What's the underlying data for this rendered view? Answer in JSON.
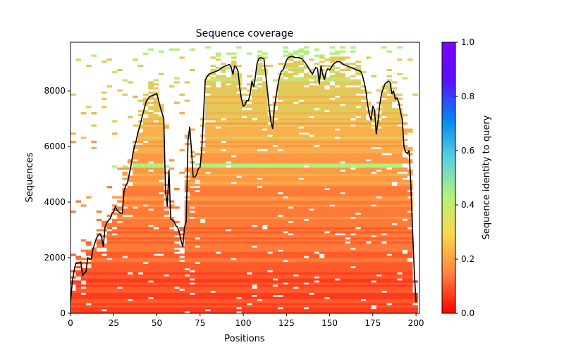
{
  "chart_data": {
    "type": "heatmap",
    "title": "Sequence coverage",
    "xlabel": "Positions",
    "ylabel": "Sequences",
    "xlim": [
      0,
      202
    ],
    "ylim": [
      0,
      9750
    ],
    "xticks": [
      0,
      25,
      50,
      75,
      100,
      125,
      150,
      175,
      200
    ],
    "yticks": [
      0,
      2000,
      4000,
      6000,
      8000
    ],
    "colorbar": {
      "label": "Sequence identity to query",
      "range": [
        0.0,
        1.0
      ],
      "ticks": [
        "0.0",
        "0.2",
        "0.4",
        "0.6",
        "0.8",
        "1.0"
      ],
      "colormap": "rainbow_r",
      "colors": [
        "#ff0000",
        "#ff7f3f",
        "#ffd44a",
        "#b4f37b",
        "#5cd0df",
        "#0088f0",
        "#5a10ff",
        "#7f00ff"
      ]
    },
    "coverage_line": {
      "color": "#000000",
      "x": [
        0,
        1,
        2,
        3,
        4,
        6,
        7,
        8,
        9,
        10,
        11,
        12,
        13,
        14,
        15,
        16,
        17,
        18,
        19,
        20,
        21,
        22,
        23,
        24,
        25,
        26,
        27,
        28,
        29,
        30,
        31,
        32,
        33,
        34,
        35,
        36,
        37,
        38,
        39,
        40,
        42,
        44,
        46,
        48,
        50,
        52,
        54,
        55,
        56,
        57,
        58,
        59,
        60,
        61,
        62,
        63,
        64,
        65,
        66,
        67,
        68,
        69,
        70,
        71,
        72,
        73,
        74,
        75,
        76,
        78,
        80,
        82,
        84,
        86,
        88,
        90,
        92,
        93,
        94,
        95,
        96,
        97,
        98,
        99,
        100,
        101,
        102,
        103,
        104,
        105,
        106,
        107,
        108,
        109,
        110,
        112,
        114,
        115,
        116,
        117,
        118,
        119,
        120,
        121,
        122,
        123,
        124,
        125,
        126,
        128,
        130,
        132,
        134,
        136,
        138,
        140,
        142,
        143,
        144,
        145,
        146,
        147,
        148,
        149,
        150,
        152,
        154,
        156,
        158,
        160,
        162,
        164,
        166,
        168,
        169,
        170,
        171,
        172,
        173,
        174,
        175,
        176,
        177,
        178,
        179,
        180,
        182,
        184,
        185,
        186,
        187,
        188,
        189,
        190,
        191,
        192,
        193,
        194,
        195,
        196,
        197,
        198,
        199,
        200,
        201
      ],
      "y": [
        400,
        1100,
        1500,
        1800,
        1800,
        1850,
        1350,
        1450,
        1500,
        2000,
        1950,
        1950,
        2300,
        2500,
        2700,
        2800,
        2850,
        2750,
        2400,
        3100,
        3250,
        3350,
        3400,
        3600,
        3650,
        3850,
        3700,
        3650,
        3600,
        3600,
        4400,
        4600,
        4700,
        5000,
        5300,
        5700,
        6000,
        6200,
        6500,
        6700,
        7200,
        7650,
        7800,
        7850,
        7900,
        7400,
        7000,
        4400,
        3850,
        5150,
        3400,
        3350,
        3300,
        3150,
        3100,
        2900,
        2600,
        2400,
        3100,
        3300,
        6200,
        6700,
        5900,
        4900,
        4900,
        5000,
        5200,
        5250,
        5900,
        8400,
        8600,
        8650,
        8700,
        8750,
        8850,
        8900,
        8950,
        8850,
        8600,
        8900,
        8850,
        8700,
        8100,
        7700,
        7450,
        7500,
        7650,
        7650,
        7900,
        8350,
        8150,
        8500,
        9000,
        9150,
        9200,
        9150,
        8000,
        7400,
        6900,
        6650,
        7400,
        7800,
        8200,
        8500,
        8700,
        8750,
        8900,
        9100,
        9200,
        9250,
        9200,
        9200,
        9150,
        9000,
        8800,
        8600,
        8850,
        8800,
        8250,
        8900,
        8600,
        8400,
        8700,
        8800,
        8750,
        8950,
        9050,
        9050,
        8950,
        8900,
        8850,
        8800,
        8750,
        8700,
        8550,
        8300,
        8000,
        7500,
        7150,
        6950,
        7450,
        7300,
        6450,
        6900,
        7500,
        7900,
        8250,
        8350,
        8300,
        7900,
        8000,
        7700,
        7750,
        7600,
        7250,
        7000,
        6000,
        5800,
        5750,
        5850,
        4600,
        3000,
        1500,
        400
      ]
    },
    "annotations": []
  }
}
